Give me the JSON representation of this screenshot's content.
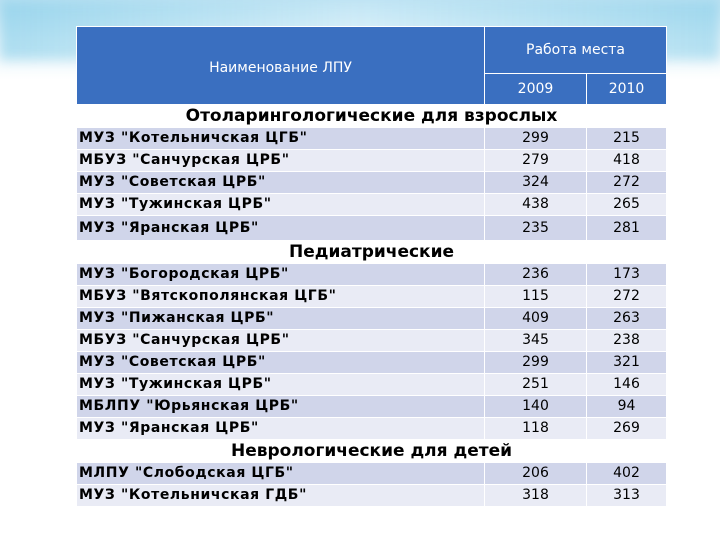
{
  "header": {
    "name_col": "Наименование ЛПУ",
    "group_col": "Работа места",
    "years": [
      "2009",
      "2010"
    ]
  },
  "sections": [
    {
      "title": "Отоларингологические для взрослых",
      "rows": [
        {
          "name": "МУЗ \"Котельничская ЦГБ\"",
          "v2009": "299",
          "v2010": "215"
        },
        {
          "name": "МБУЗ \"Санчурская ЦРБ\"",
          "v2009": "279",
          "v2010": "418"
        },
        {
          "name": "МУЗ \"Советская ЦРБ\"",
          "v2009": "324",
          "v2010": "272"
        },
        {
          "name": "МУЗ \"Тужинская ЦРБ\"",
          "v2009": "438",
          "v2010": "265"
        },
        {
          "name": "МУЗ \"Яранская ЦРБ\"",
          "v2009": "235",
          "v2010": "281"
        }
      ]
    },
    {
      "title": "Педиатрические",
      "rows": [
        {
          "name": "МУЗ \"Богородская ЦРБ\"",
          "v2009": "236",
          "v2010": "173"
        },
        {
          "name": "МБУЗ \"Вятскополянская ЦГБ\"",
          "v2009": "115",
          "v2010": "272"
        },
        {
          "name": "МУЗ \"Пижанская ЦРБ\"",
          "v2009": "409",
          "v2010": "263"
        },
        {
          "name": "МБУЗ \"Санчурская ЦРБ\"",
          "v2009": "345",
          "v2010": "238"
        },
        {
          "name": "МУЗ \"Советская ЦРБ\"",
          "v2009": "299",
          "v2010": "321"
        },
        {
          "name": "МУЗ \"Тужинская ЦРБ\"",
          "v2009": "251",
          "v2010": "146"
        },
        {
          "name": "МБЛПУ \"Юрьянская ЦРБ\"",
          "v2009": "140",
          "v2010": "94"
        },
        {
          "name": "МУЗ \"Яранская ЦРБ\"",
          "v2009": "118",
          "v2010": "269"
        }
      ]
    },
    {
      "title": "Неврологические для детей",
      "rows": [
        {
          "name": "МЛПУ \"Слободская ЦГБ\"",
          "v2009": "206",
          "v2010": "402"
        },
        {
          "name": "МУЗ \"Котельничская ГДБ\"",
          "v2009": "318",
          "v2010": "313"
        }
      ]
    }
  ]
}
